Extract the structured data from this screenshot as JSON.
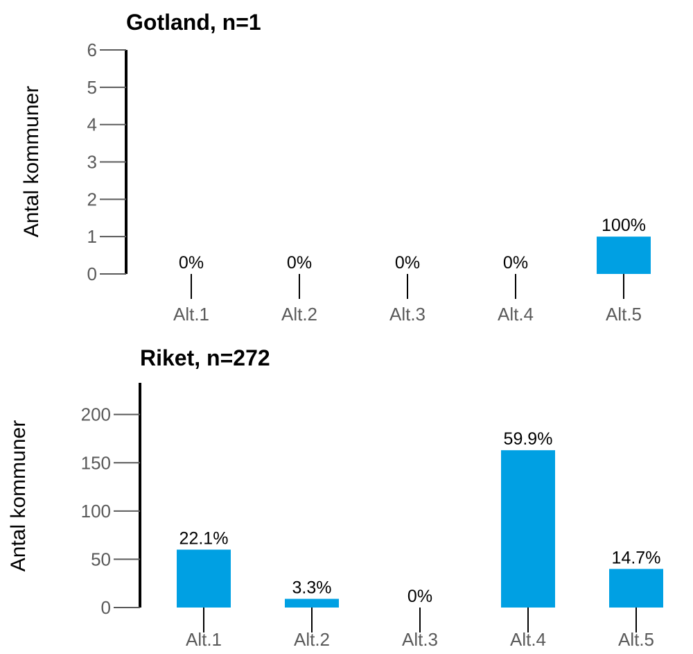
{
  "colors": {
    "bar": "#00A0E3",
    "axis": "#000000",
    "tick_text": "#595959"
  },
  "chart_data": [
    {
      "type": "bar",
      "title": "Gotland, n=1",
      "ylabel": "Antal kommuner",
      "xlabel": "",
      "categories": [
        "Alt.1",
        "Alt.2",
        "Alt.3",
        "Alt.4",
        "Alt.5"
      ],
      "values": [
        0,
        0,
        0,
        0,
        1
      ],
      "labels": [
        "0%",
        "0%",
        "0%",
        "0%",
        "100%"
      ],
      "ylim": [
        0,
        6
      ],
      "yticks": [
        "0",
        "1",
        "2",
        "3",
        "4",
        "5",
        "6"
      ],
      "grid": false
    },
    {
      "type": "bar",
      "title": "Riket, n=272",
      "ylabel": "Antal kommuner",
      "xlabel": "",
      "categories": [
        "Alt.1",
        "Alt.2",
        "Alt.3",
        "Alt.4",
        "Alt.5"
      ],
      "values": [
        60,
        9,
        0,
        163,
        40
      ],
      "labels": [
        "22.1%",
        "3.3%",
        "0%",
        "59.9%",
        "14.7%"
      ],
      "ylim": [
        0,
        240
      ],
      "yticks": [
        "0",
        "50",
        "100",
        "150",
        "200"
      ],
      "grid": false
    }
  ]
}
